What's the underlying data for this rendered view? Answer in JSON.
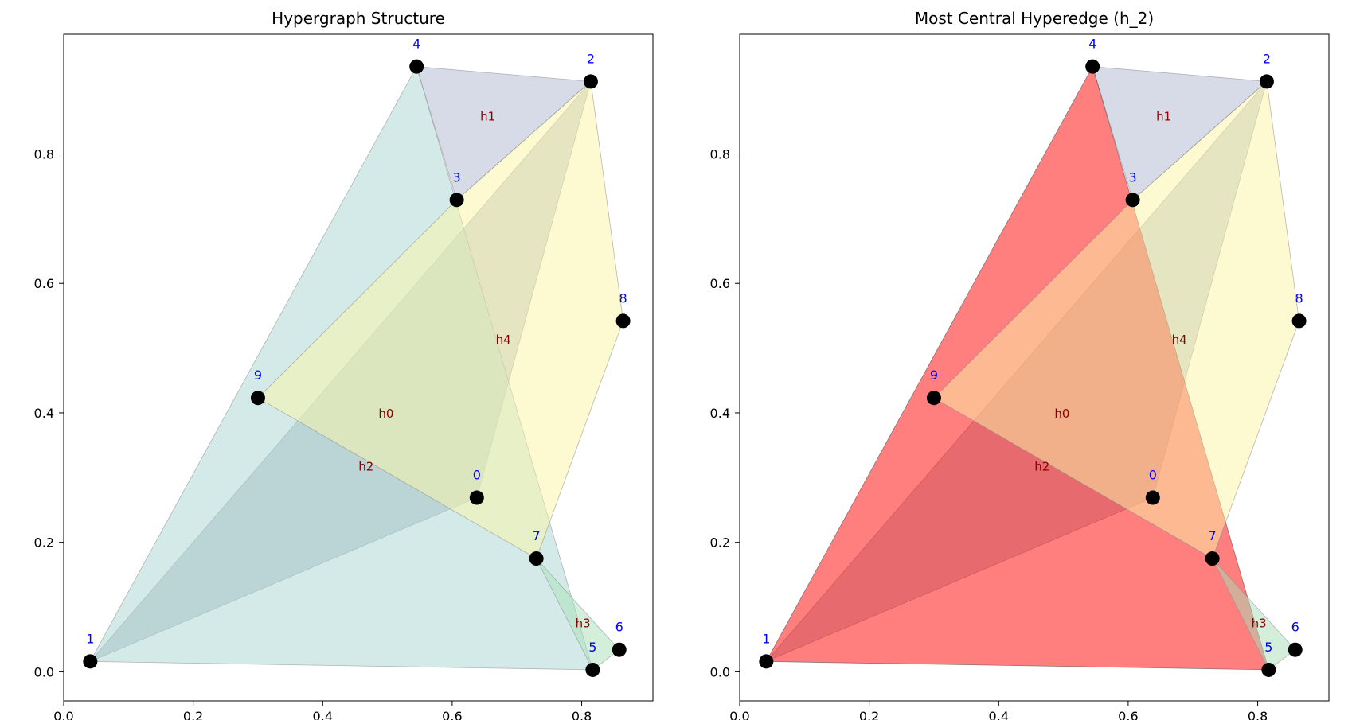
{
  "chart_data": {
    "type": "scatter",
    "panels": [
      {
        "title": "Hypergraph Structure",
        "highlight": null
      },
      {
        "title": "Most Central Hyperedge (h_2)",
        "highlight": "h2"
      }
    ],
    "xlim": [
      0.0,
      0.91
    ],
    "ylim": [
      -0.045,
      0.985
    ],
    "xticks": [
      {
        "value": 0.0,
        "label": "0.0"
      },
      {
        "value": 0.2,
        "label": "0.2"
      },
      {
        "value": 0.4,
        "label": "0.4"
      },
      {
        "value": 0.6,
        "label": "0.6"
      },
      {
        "value": 0.8,
        "label": "0.8"
      }
    ],
    "yticks": [
      {
        "value": 0.0,
        "label": "0.0"
      },
      {
        "value": 0.2,
        "label": "0.2"
      },
      {
        "value": 0.4,
        "label": "0.4"
      },
      {
        "value": 0.6,
        "label": "0.6"
      },
      {
        "value": 0.8,
        "label": "0.8"
      }
    ],
    "nodes": [
      {
        "id": "0",
        "x": 0.638,
        "y": 0.269
      },
      {
        "id": "1",
        "x": 0.041,
        "y": 0.016
      },
      {
        "id": "2",
        "x": 0.814,
        "y": 0.912
      },
      {
        "id": "3",
        "x": 0.607,
        "y": 0.729
      },
      {
        "id": "4",
        "x": 0.545,
        "y": 0.935
      },
      {
        "id": "5",
        "x": 0.817,
        "y": 0.003
      },
      {
        "id": "6",
        "x": 0.858,
        "y": 0.034
      },
      {
        "id": "7",
        "x": 0.73,
        "y": 0.175
      },
      {
        "id": "8",
        "x": 0.864,
        "y": 0.542
      },
      {
        "id": "9",
        "x": 0.3,
        "y": 0.423
      }
    ],
    "hyperedges": [
      {
        "name": "h0",
        "members": [
          "1",
          "2",
          "0"
        ],
        "color": "#a0aabb",
        "label_x": 0.498,
        "label_y": 0.399
      },
      {
        "name": "h1",
        "members": [
          "4",
          "2",
          "3"
        ],
        "color": "#b0b8d0",
        "label_x": 0.655,
        "label_y": 0.858
      },
      {
        "name": "h2",
        "members": [
          "1",
          "4",
          "5"
        ],
        "color": "#a8d5d2",
        "label_x": 0.467,
        "label_y": 0.317
      },
      {
        "name": "h3",
        "members": [
          "7",
          "6",
          "5"
        ],
        "color": "#a8e0b8",
        "label_x": 0.802,
        "label_y": 0.075
      },
      {
        "name": "h4",
        "members": [
          "9",
          "3",
          "2",
          "8",
          "7"
        ],
        "color": "#fbf5a5",
        "label_x": 0.679,
        "label_y": 0.513
      }
    ],
    "highlight_color": "#ff0000",
    "node_color": "#000000",
    "node_label_color": "#0000ff",
    "edge_label_color": "#8b0000",
    "grid": false
  }
}
